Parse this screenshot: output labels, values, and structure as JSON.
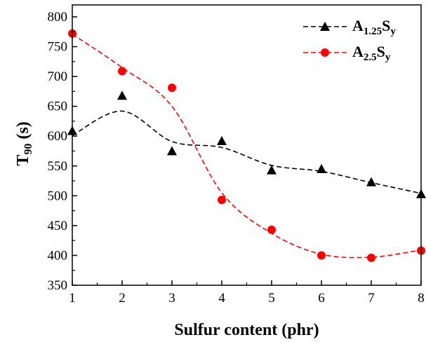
{
  "chart_data": {
    "type": "scatter",
    "xlabel": "Sulfur content (phr)",
    "ylabel_main": "T",
    "ylabel_sub": "90",
    "ylabel_unit": " (s)",
    "xlim": [
      1,
      8
    ],
    "ylim": [
      350,
      820
    ],
    "xticks": [
      1,
      2,
      3,
      4,
      5,
      6,
      7,
      8
    ],
    "yticks": [
      350,
      400,
      450,
      500,
      550,
      600,
      650,
      700,
      750,
      800
    ],
    "grid": false,
    "legend_position": "top-right",
    "series": [
      {
        "label_main": "A",
        "label_sub1": "1.25",
        "label_mid": "S",
        "label_sub2": "y",
        "marker": "triangle",
        "color": "#000000",
        "x": [
          1,
          2,
          3,
          4,
          5,
          6,
          7,
          8
        ],
        "y": [
          609,
          668,
          575,
          592,
          543,
          545,
          523,
          503
        ],
        "trend_y": [
          601,
          642,
          591,
          581,
          551,
          541,
          522,
          504
        ]
      },
      {
        "label_main": "A",
        "label_sub1": "2.5",
        "label_mid": "S",
        "label_sub2": "y",
        "marker": "circle",
        "color": "#ff0000",
        "x": [
          1,
          2,
          3,
          4,
          5,
          6,
          7,
          8
        ],
        "y": [
          772,
          709,
          681,
          493,
          443,
          400,
          396,
          408
        ],
        "trend_y": [
          771,
          715,
          650,
          505,
          437,
          402,
          397,
          409
        ]
      }
    ]
  }
}
